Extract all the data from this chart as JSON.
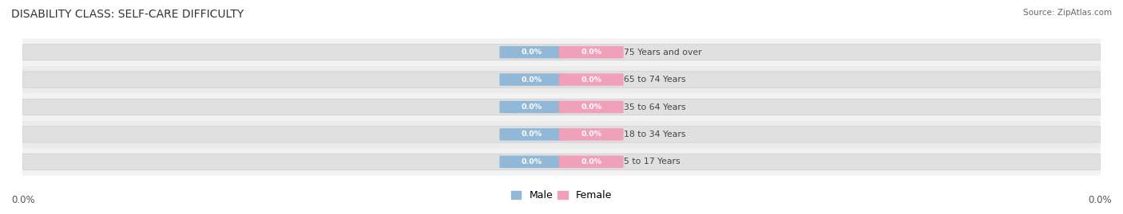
{
  "title": "DISABILITY CLASS: SELF-CARE DIFFICULTY",
  "source": "Source: ZipAtlas.com",
  "categories": [
    "5 to 17 Years",
    "18 to 34 Years",
    "35 to 64 Years",
    "65 to 74 Years",
    "75 Years and over"
  ],
  "male_values": [
    0.0,
    0.0,
    0.0,
    0.0,
    0.0
  ],
  "female_values": [
    0.0,
    0.0,
    0.0,
    0.0,
    0.0
  ],
  "male_color": "#92b8d8",
  "female_color": "#f0a0b8",
  "row_bg_colors": [
    "#f2f2f2",
    "#ebebeb"
  ],
  "bar_bg_color": "#e0e0e0",
  "axis_left_label": "0.0%",
  "axis_right_label": "0.0%",
  "title_fontsize": 10,
  "tick_fontsize": 8.5,
  "legend_fontsize": 9,
  "background_color": "#ffffff"
}
